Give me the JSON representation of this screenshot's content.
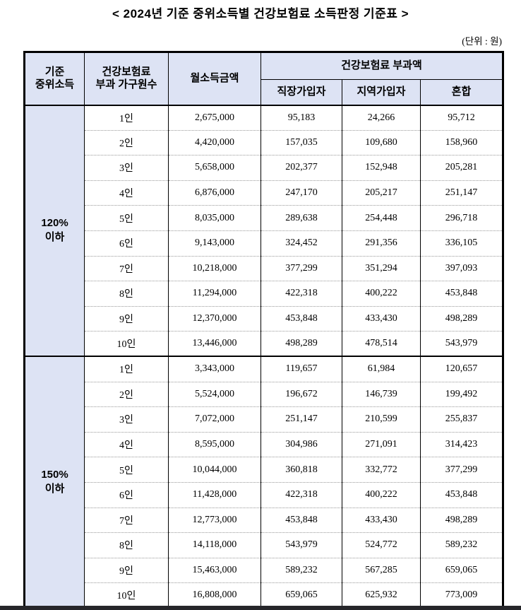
{
  "title": "< 2024년 기준 중위소득별 건강보험료 소득판정 기준표 >",
  "unit_note": "(단위 : 원)",
  "colors": {
    "header_bg": "#dde3f4",
    "table_border": "#000000",
    "row_divider_dotted": "#999999",
    "bottom_bar": "#26262a"
  },
  "table": {
    "header": {
      "col_criteria_line1": "기준",
      "col_criteria_line2": "중위소득",
      "col_household_line1": "건강보험료",
      "col_household_line2": "부과 가구원수",
      "col_monthly_income": "월소득금액",
      "group_premium": "건강보험료 부과액",
      "sub_columns": [
        "직장가입자",
        "지역가입자",
        "혼합"
      ]
    },
    "sections": [
      {
        "label_line1": "120%",
        "label_line2": "이하",
        "rows": [
          [
            "1인",
            "2,675,000",
            "95,183",
            "24,266",
            "95,712"
          ],
          [
            "2인",
            "4,420,000",
            "157,035",
            "109,680",
            "158,960"
          ],
          [
            "3인",
            "5,658,000",
            "202,377",
            "152,948",
            "205,281"
          ],
          [
            "4인",
            "6,876,000",
            "247,170",
            "205,217",
            "251,147"
          ],
          [
            "5인",
            "8,035,000",
            "289,638",
            "254,448",
            "296,718"
          ],
          [
            "6인",
            "9,143,000",
            "324,452",
            "291,356",
            "336,105"
          ],
          [
            "7인",
            "10,218,000",
            "377,299",
            "351,294",
            "397,093"
          ],
          [
            "8인",
            "11,294,000",
            "422,318",
            "400,222",
            "453,848"
          ],
          [
            "9인",
            "12,370,000",
            "453,848",
            "433,430",
            "498,289"
          ],
          [
            "10인",
            "13,446,000",
            "498,289",
            "478,514",
            "543,979"
          ]
        ]
      },
      {
        "label_line1": "150%",
        "label_line2": "이하",
        "rows": [
          [
            "1인",
            "3,343,000",
            "119,657",
            "61,984",
            "120,657"
          ],
          [
            "2인",
            "5,524,000",
            "196,672",
            "146,739",
            "199,492"
          ],
          [
            "3인",
            "7,072,000",
            "251,147",
            "210,599",
            "255,837"
          ],
          [
            "4인",
            "8,595,000",
            "304,986",
            "271,091",
            "314,423"
          ],
          [
            "5인",
            "10,044,000",
            "360,818",
            "332,772",
            "377,299"
          ],
          [
            "6인",
            "11,428,000",
            "422,318",
            "400,222",
            "453,848"
          ],
          [
            "7인",
            "12,773,000",
            "453,848",
            "433,430",
            "498,289"
          ],
          [
            "8인",
            "14,118,000",
            "543,979",
            "524,772",
            "589,232"
          ],
          [
            "9인",
            "15,463,000",
            "589,232",
            "567,285",
            "659,065"
          ],
          [
            "10인",
            "16,808,000",
            "659,065",
            "625,932",
            "773,009"
          ]
        ]
      }
    ]
  }
}
